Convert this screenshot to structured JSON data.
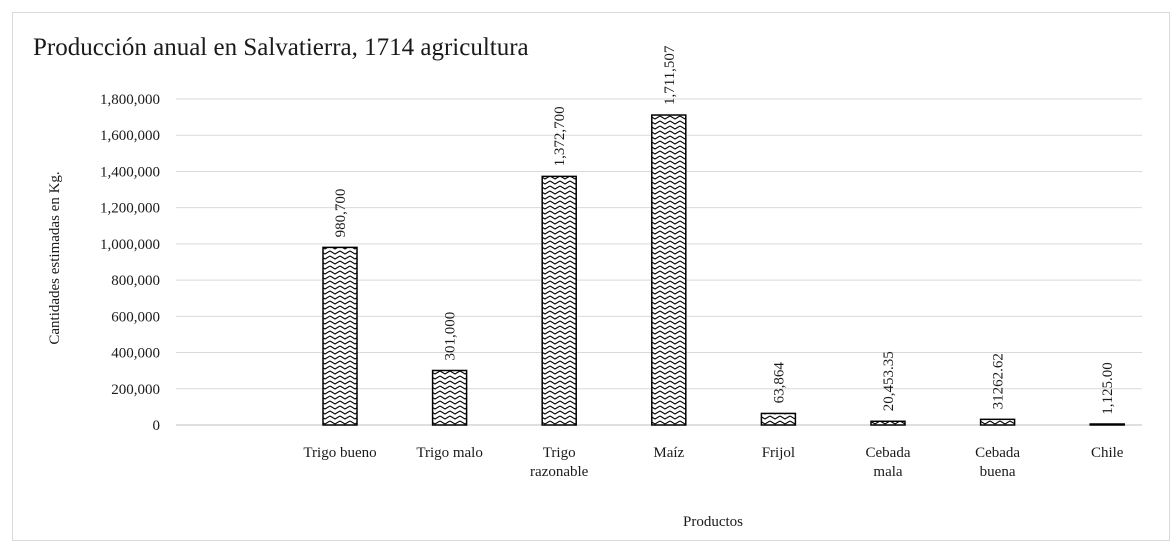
{
  "chart_data": {
    "type": "bar",
    "title": "Producción anual en Salvatierra, 1714 agricultura",
    "xlabel": "Productos",
    "ylabel": "Cantidades estimadas en Kg.",
    "ylim": [
      0,
      1800000
    ],
    "ytick_step": 200000,
    "ytick_labels": [
      "0",
      "200,000",
      "400,000",
      "600,000",
      "800,000",
      "1,000,000",
      "1,200,000",
      "1,400,000",
      "1,600,000",
      "1,800,000"
    ],
    "grid": true,
    "legend": "none",
    "categories": [
      [
        "Trigo bueno"
      ],
      [
        "Trigo malo"
      ],
      [
        "Trigo",
        "razonable"
      ],
      [
        "Maíz"
      ],
      [
        "Frijol"
      ],
      [
        "Cebada",
        "mala"
      ],
      [
        "Cebada",
        "buena"
      ],
      [
        "Chile"
      ]
    ],
    "values": [
      980700,
      301000,
      1372700,
      1711507,
      63864,
      20453.35,
      31262.62,
      1125
    ],
    "data_labels": [
      "980,700",
      "301,000",
      "1,372,700",
      "1,711,507",
      "63,864",
      "20,453.35",
      "31262.62",
      "1,125.00"
    ],
    "colors": {
      "bar_stroke": "#000000",
      "grid": "#d9d9d9",
      "pattern": "zigzag-black-on-white"
    }
  }
}
